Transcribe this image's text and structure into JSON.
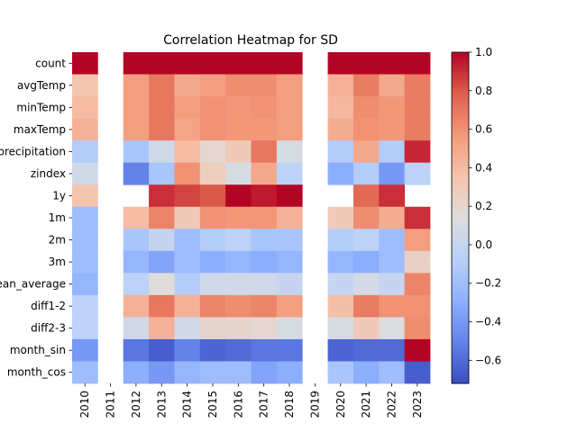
{
  "chart_data": {
    "type": "heatmap",
    "title": "Correlation Heatmap for SD",
    "xlabel": "",
    "ylabel": "",
    "x_categories": [
      "2010",
      "2011",
      "2012",
      "2013",
      "2014",
      "2015",
      "2016",
      "2017",
      "2018",
      "2019",
      "2020",
      "2021",
      "2022",
      "2023"
    ],
    "y_categories": [
      "count",
      "avgTemp",
      "minTemp",
      "maxTemp",
      "precipitation",
      "zindex",
      "1y",
      "1m",
      "2m",
      "3m",
      "mean_average",
      "diff1-2",
      "diff2-3",
      "month_sin",
      "month_cos"
    ],
    "values": [
      [
        1.0,
        null,
        1.0,
        1.0,
        1.0,
        1.0,
        1.0,
        1.0,
        1.0,
        null,
        1.0,
        1.0,
        1.0,
        1.0
      ],
      [
        0.35,
        null,
        0.55,
        0.7,
        0.5,
        0.55,
        0.62,
        0.62,
        0.55,
        null,
        0.45,
        0.68,
        0.5,
        0.68
      ],
      [
        0.4,
        null,
        0.55,
        0.7,
        0.55,
        0.6,
        0.58,
        0.6,
        0.55,
        null,
        0.42,
        0.62,
        0.58,
        0.68
      ],
      [
        0.45,
        null,
        0.55,
        0.7,
        0.52,
        0.6,
        0.58,
        0.58,
        0.55,
        null,
        0.48,
        0.6,
        0.58,
        0.68
      ],
      [
        -0.1,
        null,
        -0.15,
        0.05,
        0.4,
        0.2,
        0.3,
        0.7,
        0.1,
        null,
        -0.1,
        0.5,
        -0.1,
        0.92
      ],
      [
        0.05,
        null,
        -0.5,
        -0.15,
        0.6,
        0.28,
        0.1,
        0.5,
        -0.05,
        null,
        -0.3,
        -0.1,
        -0.4,
        -0.05
      ],
      [
        0.35,
        null,
        null,
        0.9,
        0.85,
        0.8,
        1.0,
        0.95,
        1.0,
        null,
        null,
        0.75,
        0.9,
        null
      ],
      [
        -0.2,
        null,
        0.4,
        0.65,
        0.3,
        0.6,
        0.58,
        0.58,
        0.45,
        null,
        0.3,
        0.62,
        0.48,
        0.9
      ],
      [
        -0.2,
        null,
        -0.15,
        0.0,
        -0.2,
        -0.1,
        -0.05,
        -0.15,
        -0.15,
        null,
        -0.1,
        -0.05,
        -0.2,
        0.55
      ],
      [
        -0.2,
        null,
        -0.25,
        -0.35,
        -0.2,
        -0.3,
        -0.25,
        -0.3,
        -0.25,
        null,
        -0.25,
        -0.3,
        -0.2,
        0.25
      ],
      [
        -0.25,
        null,
        -0.05,
        0.15,
        -0.1,
        0.05,
        0.05,
        0.05,
        0.0,
        null,
        0.0,
        0.08,
        0.0,
        0.65
      ],
      [
        -0.05,
        null,
        0.45,
        0.7,
        0.45,
        0.65,
        0.62,
        0.65,
        0.55,
        null,
        0.38,
        0.68,
        0.6,
        0.6
      ],
      [
        -0.05,
        null,
        0.05,
        0.45,
        0.05,
        0.22,
        0.22,
        0.2,
        0.1,
        null,
        0.1,
        0.3,
        0.12,
        0.62
      ],
      [
        -0.4,
        null,
        -0.55,
        -0.65,
        -0.5,
        -0.62,
        -0.6,
        -0.55,
        -0.55,
        null,
        -0.62,
        -0.6,
        -0.6,
        1.0
      ],
      [
        -0.2,
        null,
        -0.3,
        -0.4,
        -0.25,
        -0.2,
        -0.2,
        -0.35,
        -0.3,
        null,
        -0.15,
        -0.3,
        -0.2,
        -0.65
      ]
    ],
    "zlim": [
      -0.72,
      1.0
    ],
    "colorbar_ticks": [
      "1.0",
      "0.8",
      "0.6",
      "0.4",
      "0.2",
      "0.0",
      "−0.2",
      "−0.4",
      "−0.6"
    ],
    "colorbar_tick_values": [
      1.0,
      0.8,
      0.6,
      0.4,
      0.2,
      0.0,
      -0.2,
      -0.4,
      -0.6
    ],
    "colormap": "coolwarm",
    "missing_cells": "blank"
  }
}
